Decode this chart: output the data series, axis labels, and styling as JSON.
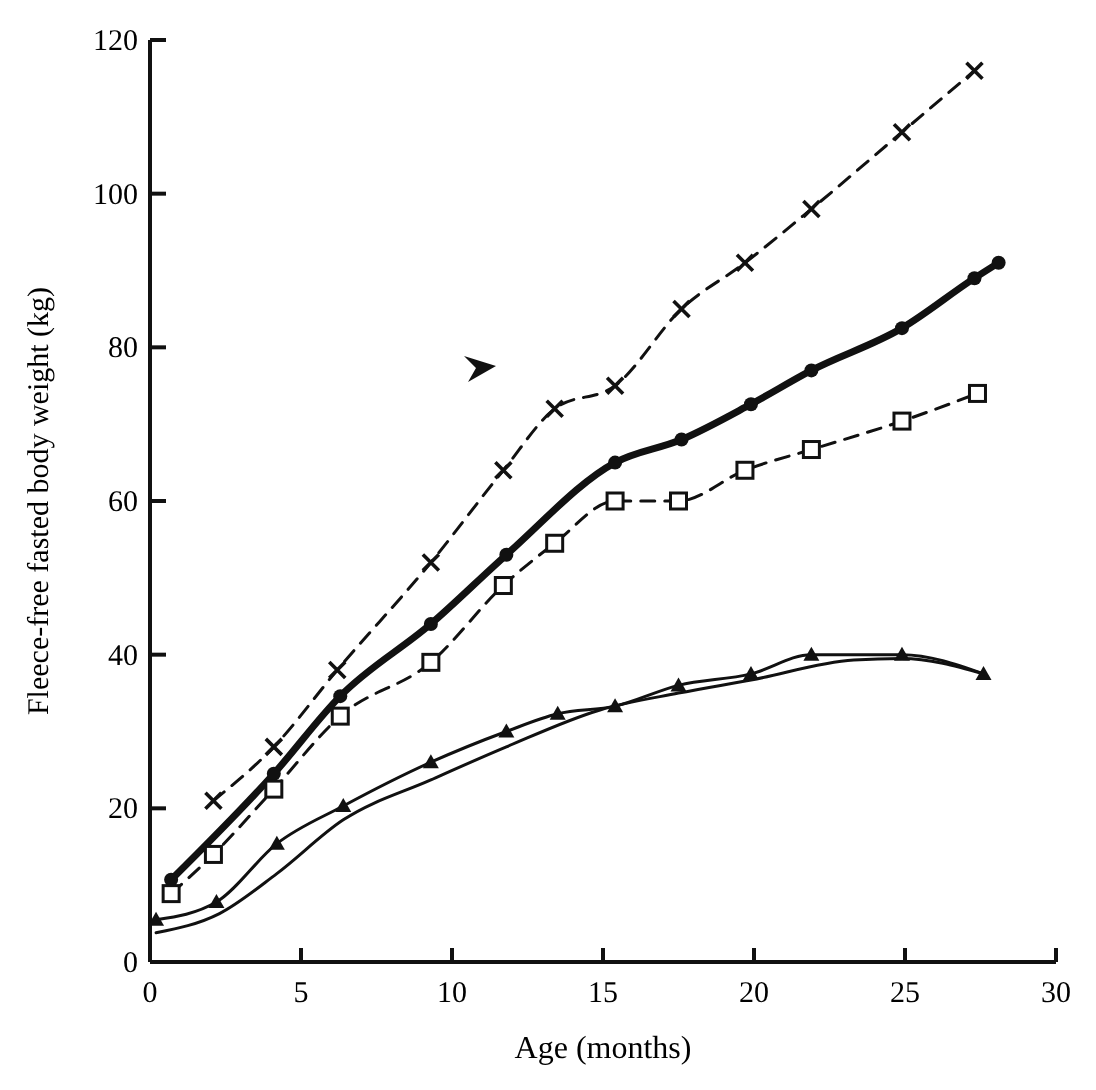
{
  "chart_data": {
    "type": "line",
    "xlabel": "Age (months)",
    "ylabel": "Fleece-free fasted body weight (kg)",
    "xlim": [
      0,
      30
    ],
    "ylim": [
      0,
      120
    ],
    "xticks": [
      0,
      5,
      10,
      15,
      20,
      25,
      30
    ],
    "yticks": [
      0,
      20,
      40,
      60,
      80,
      100,
      120
    ],
    "grid": false,
    "series": [
      {
        "color": "#111111",
        "marker": "cross",
        "line_style": "dashed",
        "x": [
          2.1,
          4.1,
          6.2,
          9.3,
          11.7,
          13.4,
          15.4,
          17.6,
          19.7,
          21.9,
          24.9,
          27.3
        ],
        "values": [
          21,
          28,
          38,
          52,
          64,
          72,
          75,
          85,
          91,
          98,
          108,
          116
        ]
      },
      {
        "color": "#111111",
        "marker": "circle",
        "line_style": "solid",
        "x": [
          0.7,
          4.1,
          6.3,
          9.3,
          11.8,
          15.4,
          17.6,
          19.9,
          21.9,
          24.9,
          27.3,
          28.1
        ],
        "values": [
          10.7,
          24.5,
          34.6,
          44,
          53,
          65,
          68,
          72.6,
          77,
          82.5,
          89,
          91
        ]
      },
      {
        "color": "#111111",
        "marker": "square",
        "line_style": "dashed",
        "x": [
          0.7,
          2.1,
          4.1,
          6.3,
          9.3,
          11.7,
          13.4,
          15.4,
          17.5,
          19.7,
          21.9,
          24.9,
          27.4
        ],
        "values": [
          8.9,
          14,
          22.5,
          32,
          39,
          49,
          54.5,
          60,
          60,
          64,
          66.7,
          70.4,
          74
        ]
      },
      {
        "color": "#111111",
        "marker": "triangle",
        "line_style": "solid",
        "x": [
          0.2,
          2.2,
          4.2,
          6.4,
          9.3,
          11.8,
          13.5,
          15.4,
          17.5,
          19.9,
          21.9,
          24.9,
          27.6
        ],
        "values": [
          5.5,
          7.8,
          15.4,
          20.3,
          26,
          30,
          32.3,
          33.3,
          36,
          37.5,
          40,
          40,
          37.5
        ]
      },
      {
        "color": "#111111",
        "marker": "none",
        "line_style": "solid",
        "x": [
          0.2,
          2.3,
          4.2,
          6.4,
          9.3,
          11.8,
          14.9,
          17.5,
          19.9,
          23.3,
          24.9,
          27.6
        ],
        "values": [
          3.8,
          6.3,
          11.5,
          18.5,
          23.7,
          28,
          32.8,
          35,
          36.7,
          39.3,
          39.5,
          37.5
        ]
      }
    ]
  }
}
